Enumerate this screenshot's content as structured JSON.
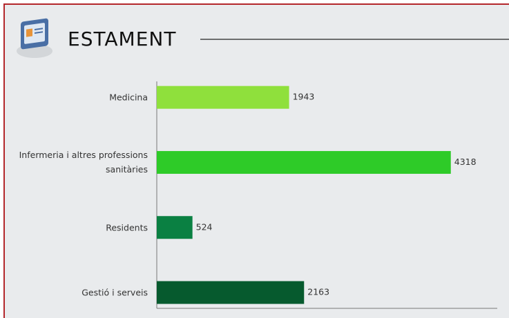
{
  "chart_data": {
    "type": "bar",
    "orientation": "horizontal",
    "title": "ESTAMENT",
    "categories": [
      "Medicina",
      "Infermeria i altres professions sanitàries",
      "Residents",
      "Gestió i serveis"
    ],
    "values": [
      1943,
      4318,
      524,
      2163
    ],
    "colors": [
      "#8fe03c",
      "#2ecb28",
      "#0a8042",
      "#065a2e"
    ],
    "xlim": [
      0,
      5000
    ]
  }
}
